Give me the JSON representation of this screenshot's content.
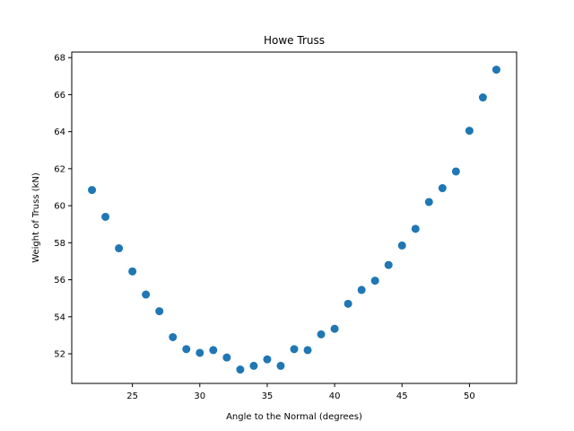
{
  "chart_data": {
    "type": "scatter",
    "title": "Howe Truss",
    "xlabel": "Angle to the Normal (degrees)",
    "ylabel": "Weight of Truss (kN)",
    "xlim": [
      20.5,
      53.5
    ],
    "ylim": [
      50.4,
      68.3
    ],
    "xticks": [
      25,
      30,
      35,
      40,
      45,
      50
    ],
    "yticks": [
      52,
      54,
      56,
      58,
      60,
      62,
      64,
      66,
      68
    ],
    "grid": false,
    "marker_color": "#1f77b4",
    "x": [
      22,
      23,
      24,
      25,
      26,
      27,
      28,
      29,
      30,
      31,
      32,
      33,
      34,
      35,
      36,
      37,
      38,
      39,
      40,
      41,
      42,
      43,
      44,
      45,
      46,
      47,
      48,
      49,
      50,
      51,
      52
    ],
    "y": [
      60.85,
      59.4,
      57.7,
      56.45,
      55.2,
      54.3,
      52.9,
      52.25,
      52.05,
      52.2,
      51.8,
      51.15,
      51.35,
      51.7,
      51.35,
      52.25,
      52.2,
      53.05,
      53.35,
      54.7,
      55.45,
      55.95,
      56.8,
      57.85,
      58.75,
      60.2,
      60.95,
      61.85,
      64.05,
      65.85,
      67.35
    ]
  }
}
